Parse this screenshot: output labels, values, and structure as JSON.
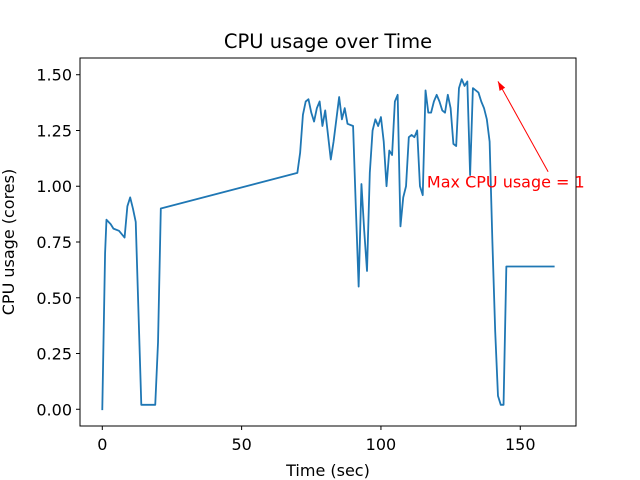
{
  "chart_data": {
    "type": "line",
    "title": "CPU usage over Time",
    "xlabel": "Time (sec)",
    "ylabel": "CPU usage (cores)",
    "xlim": [
      -8,
      170
    ],
    "ylim": [
      -0.075,
      1.575
    ],
    "xticks": [
      0,
      50,
      100,
      150
    ],
    "xtick_labels": [
      "0",
      "50",
      "100",
      "150"
    ],
    "yticks": [
      0.0,
      0.25,
      0.5,
      0.75,
      1.0,
      1.25,
      1.5
    ],
    "ytick_labels": [
      "0.00",
      "0.25",
      "0.50",
      "0.75",
      "1.00",
      "1.25",
      "1.50"
    ],
    "grid": false,
    "legend": "none",
    "series": [
      {
        "color": "#1f77b4",
        "x": [
          0,
          1,
          1.5,
          3,
          4,
          6,
          8,
          9,
          10,
          11,
          12,
          14,
          16,
          18,
          19,
          20,
          21,
          70,
          71,
          72,
          73,
          74,
          75,
          76,
          77,
          78,
          79,
          80,
          82,
          83,
          84,
          85,
          86,
          87,
          88,
          90,
          91,
          92,
          93,
          94,
          95,
          96,
          97,
          98,
          99,
          100,
          101,
          102,
          103,
          104,
          105,
          106,
          107,
          108,
          109,
          110,
          111,
          112,
          113,
          114,
          115,
          116,
          117,
          118,
          119,
          120,
          121,
          122,
          123,
          124,
          125,
          126,
          127,
          128,
          129,
          130,
          131,
          132,
          133,
          134,
          135,
          136,
          137,
          138,
          139,
          140,
          141,
          142,
          143,
          144,
          145,
          146,
          147,
          148,
          149,
          150,
          151,
          152,
          153,
          154,
          155,
          156,
          157,
          158,
          159,
          160,
          161,
          162
        ],
        "y": [
          0.0,
          0.7,
          0.85,
          0.83,
          0.81,
          0.8,
          0.77,
          0.91,
          0.95,
          0.9,
          0.84,
          0.02,
          0.02,
          0.02,
          0.02,
          0.3,
          0.9,
          1.06,
          1.15,
          1.32,
          1.38,
          1.39,
          1.33,
          1.29,
          1.35,
          1.38,
          1.27,
          1.34,
          1.12,
          1.2,
          1.3,
          1.4,
          1.3,
          1.35,
          1.28,
          1.27,
          0.9,
          0.55,
          1.01,
          0.8,
          0.62,
          1.06,
          1.25,
          1.3,
          1.27,
          1.31,
          1.2,
          1.0,
          1.16,
          1.14,
          1.38,
          1.41,
          0.82,
          0.95,
          1.0,
          1.22,
          1.23,
          1.22,
          1.25,
          1.0,
          0.96,
          1.43,
          1.33,
          1.33,
          1.38,
          1.41,
          1.38,
          1.34,
          1.33,
          1.41,
          1.35,
          1.19,
          1.18,
          1.44,
          1.48,
          1.45,
          1.47,
          1.05,
          1.44,
          1.43,
          1.42,
          1.38,
          1.35,
          1.3,
          1.2,
          0.75,
          0.35,
          0.06,
          0.02,
          0.02,
          0.64,
          0.64,
          0.64,
          0.64,
          0.64,
          0.64,
          0.64,
          0.64,
          0.64,
          0.64,
          0.64,
          0.64,
          0.64,
          0.64,
          0.64,
          0.64,
          0.64,
          0.64
        ]
      }
    ],
    "annotations": [
      {
        "text": "Max CPU usage = 1",
        "text_x": 116.5,
        "text_y": 0.995,
        "arrow_from_x": 160,
        "arrow_from_y": 1.065,
        "arrow_to_x": 142,
        "arrow_to_y": 1.47,
        "color": "#ff0000"
      }
    ]
  }
}
